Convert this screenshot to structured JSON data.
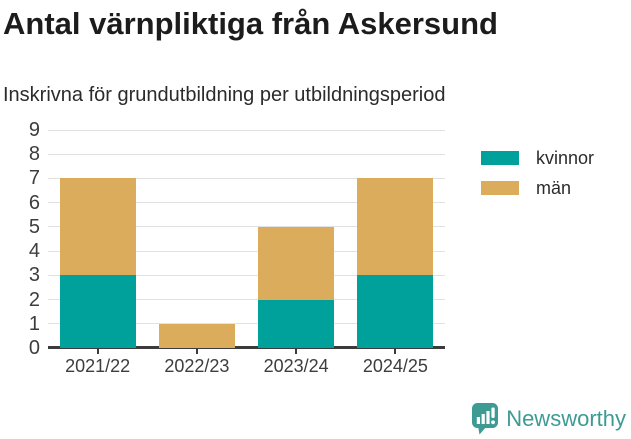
{
  "chart_data": {
    "type": "bar",
    "stacked": true,
    "title": "Antal värnpliktiga från Askersund",
    "subtitle": "Inskrivna för grundutbildning per utbildningsperiod",
    "categories": [
      "2021/22",
      "2022/23",
      "2023/24",
      "2024/25"
    ],
    "series": [
      {
        "name": "kvinnor",
        "color": "#00A19A",
        "values": [
          3,
          0,
          2,
          3
        ]
      },
      {
        "name": "män",
        "color": "#DBAC5C",
        "values": [
          4,
          1,
          3,
          4
        ]
      }
    ],
    "totals": [
      7,
      1,
      5,
      7
    ],
    "xlabel": "",
    "ylabel": "",
    "ylim": [
      0,
      9
    ],
    "yticks": [
      0,
      1,
      2,
      3,
      4,
      5,
      6,
      7,
      8,
      9
    ],
    "grid": true,
    "legend_position": "right"
  },
  "footer": {
    "brand": "Newsworthy",
    "logo_icon": "bar-chart-speech-bubble-icon",
    "brand_color": "#3D9B94"
  },
  "colors": {
    "grid": "#E2E2E2",
    "axis": "#3B3B3B",
    "title_text": "#1C1C1C",
    "subtitle_text": "#2B2B2B",
    "tick_text": "#3D3D3D"
  }
}
